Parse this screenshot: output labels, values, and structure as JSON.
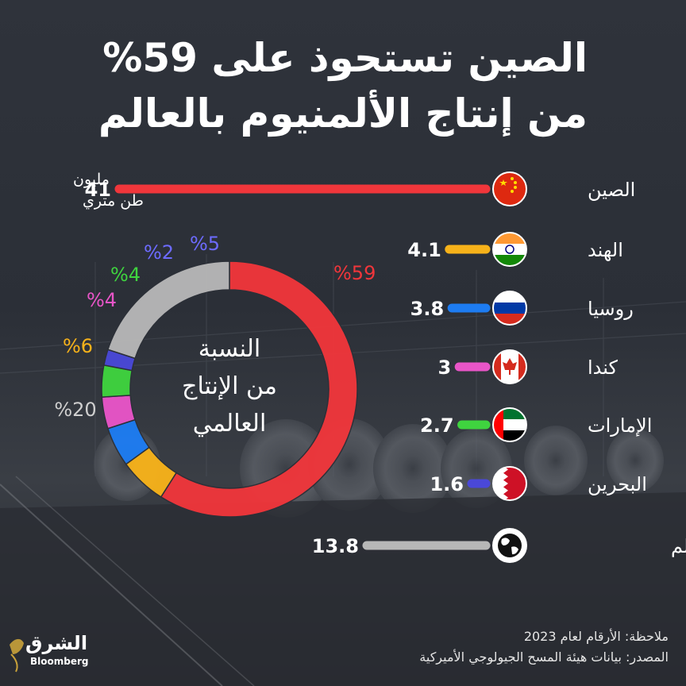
{
  "title": {
    "line1": "الصين تستحوذ على 59%",
    "line2": "من إنتاج الألمنيوم بالعالم"
  },
  "unit_label": {
    "line1": "مليون",
    "line2": "طن متري"
  },
  "donut_center": {
    "line1": "النسبة",
    "line2": "من الإنتاج",
    "line3": "العالمي"
  },
  "notes": {
    "note": "ملاحظة: الأرقام لعام 2023",
    "source": "المصدر: بيانات هيئة المسح الجيولوجي الأميركية"
  },
  "logo": {
    "name": "الشرق",
    "sub": "Bloomberg"
  },
  "colors": {
    "china": "#f0363b",
    "india": "#f7b21a",
    "russia": "#1d7cf2",
    "canada": "#e955c8",
    "uae": "#3fd43f",
    "bahrain": "#4a48d8",
    "rest": "#b7b7b7"
  },
  "chart_data": [
    {
      "type": "bar",
      "orientation": "horizontal",
      "categories": [
        "الصين",
        "الهند",
        "روسيا",
        "كندا",
        "الإمارات",
        "البحرين",
        "باقي دول العالم"
      ],
      "values": [
        41,
        4.1,
        3.8,
        3,
        2.7,
        1.6,
        13.8
      ],
      "value_labels": [
        "41",
        "4.1",
        "3.8",
        "3",
        "2.7",
        "1.6",
        "13.8"
      ],
      "icons": [
        "china-flag",
        "india-flag",
        "russia-flag",
        "canada-flag",
        "uae-flag",
        "bahrain-flag",
        "globe"
      ],
      "unit": "مليون طن متري"
    },
    {
      "type": "pie",
      "style": "donut",
      "categories": [
        "الصين",
        "الهند",
        "روسيا",
        "كندا",
        "الإمارات",
        "البحرين",
        "باقي دول العالم"
      ],
      "values": [
        59,
        6,
        5,
        4,
        4,
        2,
        20
      ],
      "value_labels": [
        "%59",
        "%6",
        "%5",
        "%4",
        "%4",
        "%2",
        "%20"
      ]
    }
  ]
}
